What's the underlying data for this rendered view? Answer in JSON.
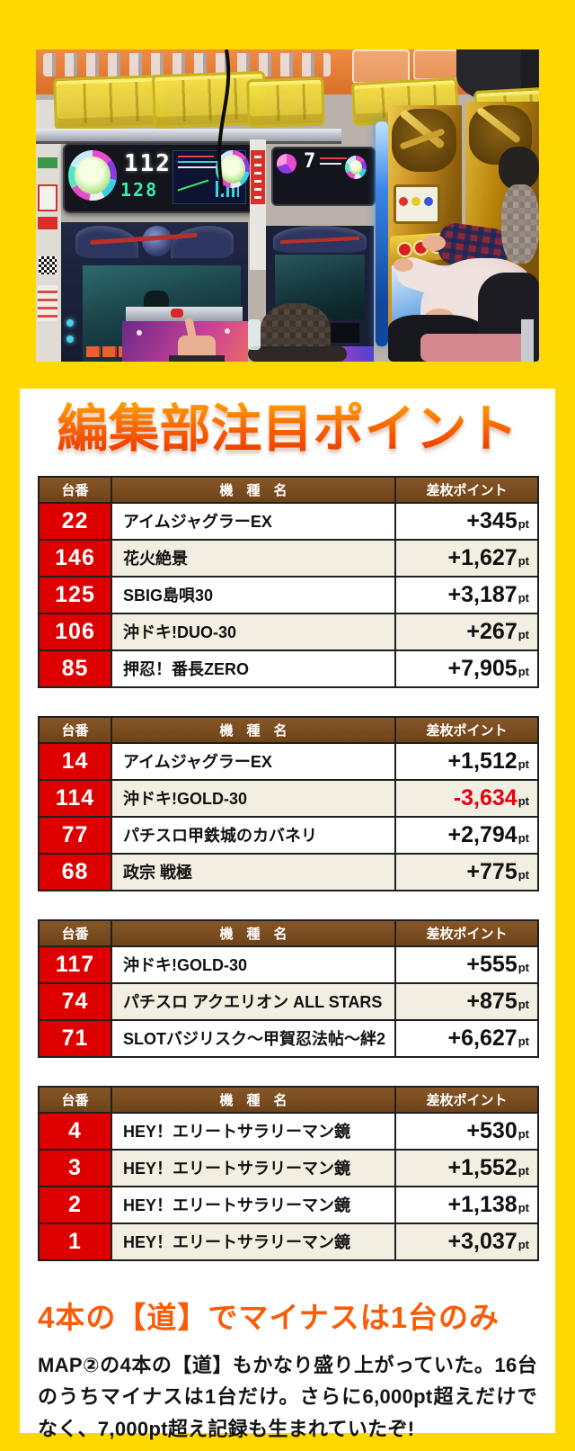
{
  "page": {
    "background_color": "#FFD800",
    "card_color": "#FFFFFF"
  },
  "title": {
    "text": "編集部注目ポイント",
    "gradient_top": "#FF9A00",
    "gradient_bottom": "#E83600"
  },
  "table_headers": {
    "unit_no": "台番",
    "machine": "機　種　名",
    "points": "差枚ポイント"
  },
  "colors": {
    "header_brown": "#7B4E20",
    "unit_red": "#DE0000",
    "row_beige": "#F2EEE2",
    "border_dark": "#1F1F1F",
    "negative_red": "#E60012",
    "heading_orange": "#F95C07"
  },
  "tables": [
    {
      "rows": [
        {
          "no": "22",
          "name": "アイムジャグラーEX",
          "value": "+345",
          "unit": "pt",
          "negative": false
        },
        {
          "no": "146",
          "name": "花火絶景",
          "value": "+1,627",
          "unit": "pt",
          "negative": false
        },
        {
          "no": "125",
          "name": "SBIG島唄30",
          "value": "+3,187",
          "unit": "pt",
          "negative": false
        },
        {
          "no": "106",
          "name": "沖ドキ!DUO-30",
          "value": "+267",
          "unit": "pt",
          "negative": false
        },
        {
          "no": "85",
          "name": "押忍！番長ZERO",
          "value": "+7,905",
          "unit": "pt",
          "negative": false
        }
      ]
    },
    {
      "rows": [
        {
          "no": "14",
          "name": "アイムジャグラーEX",
          "value": "+1,512",
          "unit": "pt",
          "negative": false
        },
        {
          "no": "114",
          "name": "沖ドキ!GOLD-30",
          "value": "-3,634",
          "unit": "pt",
          "negative": true
        },
        {
          "no": "77",
          "name": "パチスロ甲鉄城のカバネリ",
          "value": "+2,794",
          "unit": "pt",
          "negative": false
        },
        {
          "no": "68",
          "name": "政宗 戦極",
          "value": "+775",
          "unit": "pt",
          "negative": false
        }
      ]
    },
    {
      "rows": [
        {
          "no": "117",
          "name": "沖ドキ!GOLD-30",
          "value": "+555",
          "unit": "pt",
          "negative": false
        },
        {
          "no": "74",
          "name": "パチスロ アクエリオン ALL STARS",
          "value": "+875",
          "unit": "pt",
          "negative": false
        },
        {
          "no": "71",
          "name": "SLOTバジリスク～甲賀忍法帖～絆2",
          "value": "+6,627",
          "unit": "pt",
          "negative": false
        }
      ]
    },
    {
      "rows": [
        {
          "no": "4",
          "name": "HEY！エリートサラリーマン鏡",
          "value": "+530",
          "unit": "pt",
          "negative": false
        },
        {
          "no": "3",
          "name": "HEY！エリートサラリーマン鏡",
          "value": "+1,552",
          "unit": "pt",
          "negative": false
        },
        {
          "no": "2",
          "name": "HEY！エリートサラリーマン鏡",
          "value": "+1,138",
          "unit": "pt",
          "negative": false
        },
        {
          "no": "1",
          "name": "HEY！エリートサラリーマン鏡",
          "value": "+3,037",
          "unit": "pt",
          "negative": false
        }
      ]
    }
  ],
  "footer": {
    "heading": "4本の【道】でマイナスは1台のみ",
    "body": "MAP②の4本の【道】もかなり盛り上がっていた。16台のうちマイナスは1台だけ。さらに6,000pt超えだけでなく、7,000pt超え記録も生まれていたぞ!"
  },
  "photo": {
    "counter_top": "112",
    "counter_bottom": "128",
    "counter_center": "7"
  }
}
